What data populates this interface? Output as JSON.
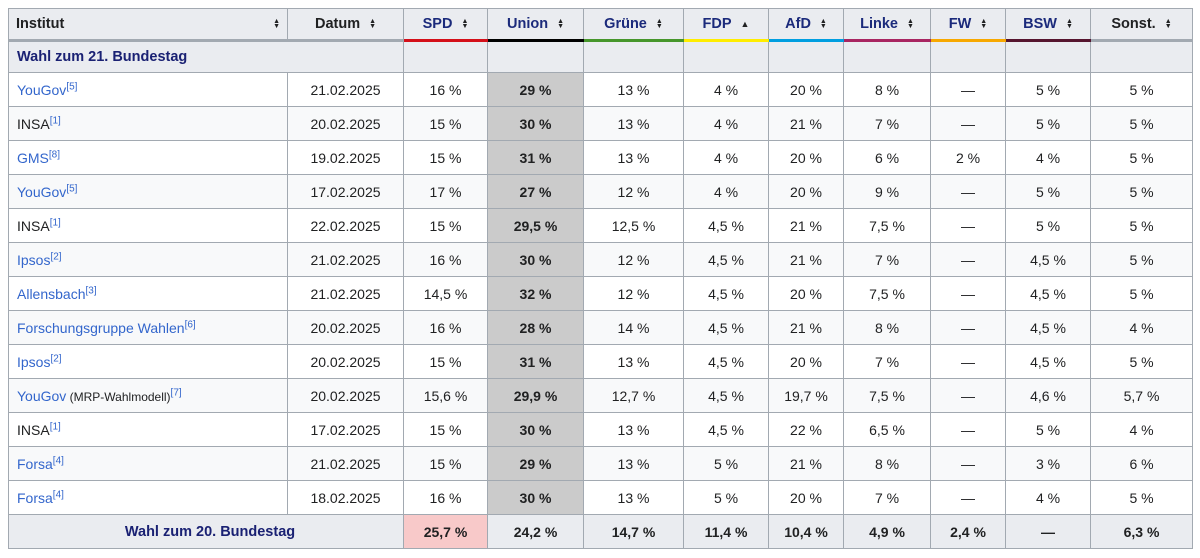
{
  "colors": {
    "border": "#a2a9b1",
    "header_bg": "#eaecf0",
    "row_alt_bg": "#f8f9fa",
    "union_highlight_bg": "#cbcbcb",
    "spd_winner_bg": "#f8c9c9",
    "link_blue": "#3366cc",
    "navy_link": "#1a2173",
    "text": "#202122"
  },
  "table": {
    "columns": [
      {
        "label": "Institut",
        "sort": "both",
        "underline": "#a2a9b1",
        "style": "plain"
      },
      {
        "label": "Datum",
        "sort": "both",
        "underline": "#a2a9b1",
        "style": "plain"
      },
      {
        "label": "SPD",
        "sort": "both",
        "underline": "#d40f19",
        "style": "party"
      },
      {
        "label": "Union",
        "sort": "both",
        "underline": "#000000",
        "style": "party"
      },
      {
        "label": "Grüne",
        "sort": "both",
        "underline": "#46962b",
        "style": "party"
      },
      {
        "label": "FDP",
        "sort": "asc",
        "underline": "#ffed00",
        "style": "party"
      },
      {
        "label": "AfD",
        "sort": "both",
        "underline": "#009ee0",
        "style": "party"
      },
      {
        "label": "Linke",
        "sort": "both",
        "underline": "#a82561",
        "style": "party"
      },
      {
        "label": "FW",
        "sort": "both",
        "underline": "#f7a800",
        "style": "party"
      },
      {
        "label": "BSW",
        "sort": "both",
        "underline": "#56152f",
        "style": "party"
      },
      {
        "label": "Sonst.",
        "sort": "both",
        "underline": "#a2a9b1",
        "style": "plain-bold"
      }
    ],
    "section_header": "Wahl zum 21. Bundestag",
    "rows": [
      {
        "institut": "YouGov",
        "note": "",
        "ref": "[5]",
        "is_link": true,
        "datum": "21.02.2025",
        "values": [
          "16 %",
          "29 %",
          "13 %",
          "4 %",
          "20 %",
          "8 %",
          "—",
          "5 %",
          "5 %"
        ]
      },
      {
        "institut": "INSA",
        "note": "",
        "ref": "[1]",
        "is_link": false,
        "datum": "20.02.2025",
        "values": [
          "15 %",
          "30 %",
          "13 %",
          "4 %",
          "21 %",
          "7 %",
          "—",
          "5 %",
          "5 %"
        ]
      },
      {
        "institut": "GMS",
        "note": "",
        "ref": "[8]",
        "is_link": true,
        "datum": "19.02.2025",
        "values": [
          "15 %",
          "31 %",
          "13 %",
          "4 %",
          "20 %",
          "6 %",
          "2 %",
          "4 %",
          "5 %"
        ]
      },
      {
        "institut": "YouGov",
        "note": "",
        "ref": "[5]",
        "is_link": true,
        "datum": "17.02.2025",
        "values": [
          "17 %",
          "27 %",
          "12 %",
          "4 %",
          "20 %",
          "9 %",
          "—",
          "5 %",
          "5 %"
        ]
      },
      {
        "institut": "INSA",
        "note": "",
        "ref": "[1]",
        "is_link": false,
        "datum": "22.02.2025",
        "values": [
          "15 %",
          "29,5 %",
          "12,5 %",
          "4,5 %",
          "21 %",
          "7,5 %",
          "—",
          "5 %",
          "5 %"
        ]
      },
      {
        "institut": "Ipsos",
        "note": "",
        "ref": "[2]",
        "is_link": true,
        "datum": "21.02.2025",
        "values": [
          "16 %",
          "30 %",
          "12 %",
          "4,5 %",
          "21 %",
          "7 %",
          "—",
          "4,5 %",
          "5 %"
        ]
      },
      {
        "institut": "Allensbach",
        "note": "",
        "ref": "[3]",
        "is_link": true,
        "datum": "21.02.2025",
        "values": [
          "14,5 %",
          "32 %",
          "12 %",
          "4,5 %",
          "20 %",
          "7,5 %",
          "—",
          "4,5 %",
          "5 %"
        ]
      },
      {
        "institut": "Forschungsgruppe Wahlen",
        "note": "",
        "ref": "[6]",
        "is_link": true,
        "datum": "20.02.2025",
        "values": [
          "16 %",
          "28 %",
          "14 %",
          "4,5 %",
          "21 %",
          "8 %",
          "—",
          "4,5 %",
          "4 %"
        ]
      },
      {
        "institut": "Ipsos",
        "note": "",
        "ref": "[2]",
        "is_link": true,
        "datum": "20.02.2025",
        "values": [
          "15 %",
          "31 %",
          "13 %",
          "4,5 %",
          "20 %",
          "7 %",
          "—",
          "4,5 %",
          "5 %"
        ]
      },
      {
        "institut": "YouGov",
        "note": "(MRP-Wahlmodell)",
        "ref": "[7]",
        "is_link": true,
        "datum": "20.02.2025",
        "values": [
          "15,6 %",
          "29,9 %",
          "12,7 %",
          "4,5 %",
          "19,7 %",
          "7,5 %",
          "—",
          "4,6 %",
          "5,7 %"
        ]
      },
      {
        "institut": "INSA",
        "note": "",
        "ref": "[1]",
        "is_link": false,
        "datum": "17.02.2025",
        "values": [
          "15 %",
          "30 %",
          "13 %",
          "4,5 %",
          "22 %",
          "6,5 %",
          "—",
          "5 %",
          "4 %"
        ]
      },
      {
        "institut": "Forsa",
        "note": "",
        "ref": "[4]",
        "is_link": true,
        "datum": "21.02.2025",
        "values": [
          "15 %",
          "29 %",
          "13 %",
          "5 %",
          "21 %",
          "8 %",
          "—",
          "3 %",
          "6 %"
        ]
      },
      {
        "institut": "Forsa",
        "note": "",
        "ref": "[4]",
        "is_link": true,
        "datum": "18.02.2025",
        "values": [
          "16 %",
          "30 %",
          "13 %",
          "5 %",
          "20 %",
          "7 %",
          "—",
          "4 %",
          "5 %"
        ]
      }
    ],
    "footer": {
      "label": "Wahl zum 20. Bundestag",
      "values": [
        "25,7 %",
        "24,2 %",
        "14,7 %",
        "11,4 %",
        "10,4 %",
        "4,9 %",
        "2,4 %",
        "—",
        "6,3 %"
      ]
    }
  }
}
